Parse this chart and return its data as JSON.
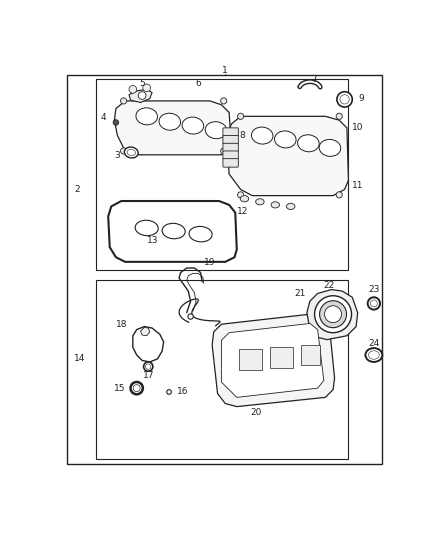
{
  "fig_width": 4.38,
  "fig_height": 5.33,
  "dpi": 100,
  "bg_color": "#ffffff",
  "lc": "#222222",
  "tc": "#222222",
  "fs": 6.5
}
